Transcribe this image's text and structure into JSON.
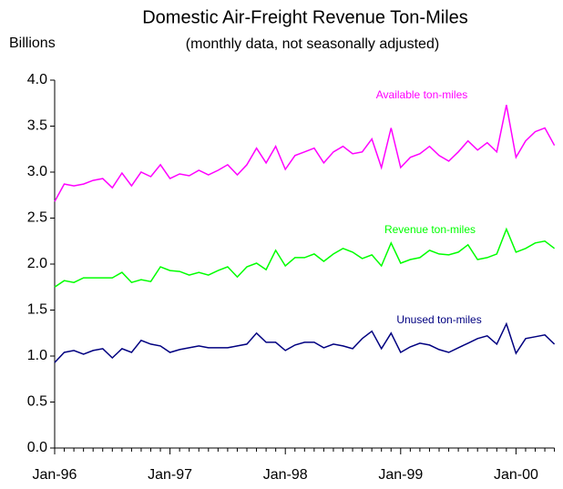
{
  "chart_data": {
    "type": "line",
    "title": "Domestic Air-Freight Revenue Ton-Miles",
    "subtitle": "(monthly data, not seasonally adjusted)",
    "y_label": "Billions",
    "categories": [
      "Jan-96",
      "Feb-96",
      "Mar-96",
      "Apr-96",
      "May-96",
      "Jun-96",
      "Jul-96",
      "Aug-96",
      "Sep-96",
      "Oct-96",
      "Nov-96",
      "Dec-96",
      "Jan-97",
      "Feb-97",
      "Mar-97",
      "Apr-97",
      "May-97",
      "Jun-97",
      "Jul-97",
      "Aug-97",
      "Sep-97",
      "Oct-97",
      "Nov-97",
      "Dec-97",
      "Jan-98",
      "Feb-98",
      "Mar-98",
      "Apr-98",
      "May-98",
      "Jun-98",
      "Jul-98",
      "Aug-98",
      "Sep-98",
      "Oct-98",
      "Nov-98",
      "Dec-98",
      "Jan-99",
      "Feb-99",
      "Mar-99",
      "Apr-99",
      "May-99",
      "Jun-99",
      "Jul-99",
      "Aug-99",
      "Sep-99",
      "Oct-99",
      "Nov-99",
      "Dec-99",
      "Jan-00",
      "Feb-00",
      "Mar-00",
      "Apr-00",
      "May-00"
    ],
    "xtick_every": 12,
    "ylim": [
      0,
      4
    ],
    "yticks": [
      {
        "value": 0,
        "label": "0.0"
      },
      0.5,
      {
        "value": 1,
        "label": "1.0"
      },
      1.5,
      {
        "value": 2,
        "label": "2.0"
      },
      2.5,
      {
        "value": 3,
        "label": "3.0"
      },
      3.5,
      {
        "value": 4,
        "label": "4.0"
      }
    ],
    "grid": false,
    "series": [
      {
        "name": "Available ton-miles",
        "color": "#ff00ff",
        "values": [
          2.68,
          2.87,
          2.85,
          2.87,
          2.91,
          2.93,
          2.83,
          2.99,
          2.85,
          3.0,
          2.95,
          3.08,
          2.93,
          2.98,
          2.96,
          3.02,
          2.97,
          3.02,
          3.08,
          2.97,
          3.08,
          3.26,
          3.1,
          3.28,
          3.03,
          3.18,
          3.22,
          3.26,
          3.1,
          3.22,
          3.28,
          3.2,
          3.22,
          3.36,
          3.05,
          3.48,
          3.05,
          3.16,
          3.2,
          3.28,
          3.18,
          3.12,
          3.22,
          3.34,
          3.24,
          3.32,
          3.22,
          3.73,
          3.16,
          3.34,
          3.44,
          3.48,
          3.29
        ]
      },
      {
        "name": "Revenue ton-miles",
        "color": "#00ff00",
        "values": [
          1.75,
          1.82,
          1.8,
          1.85,
          1.85,
          1.85,
          1.85,
          1.91,
          1.8,
          1.83,
          1.81,
          1.97,
          1.93,
          1.92,
          1.88,
          1.91,
          1.88,
          1.93,
          1.97,
          1.86,
          1.97,
          2.01,
          1.94,
          2.15,
          1.98,
          2.07,
          2.07,
          2.11,
          2.03,
          2.11,
          2.17,
          2.13,
          2.06,
          2.1,
          1.98,
          2.23,
          2.01,
          2.05,
          2.07,
          2.15,
          2.11,
          2.1,
          2.13,
          2.21,
          2.05,
          2.07,
          2.11,
          2.38,
          2.13,
          2.17,
          2.23,
          2.25,
          2.17
        ]
      },
      {
        "name": "Unused ton-miles",
        "color": "#000080",
        "values": [
          0.93,
          1.04,
          1.06,
          1.02,
          1.06,
          1.08,
          0.98,
          1.08,
          1.04,
          1.17,
          1.13,
          1.11,
          1.04,
          1.07,
          1.09,
          1.11,
          1.09,
          1.09,
          1.09,
          1.11,
          1.13,
          1.25,
          1.15,
          1.15,
          1.06,
          1.12,
          1.15,
          1.15,
          1.09,
          1.13,
          1.11,
          1.08,
          1.19,
          1.27,
          1.08,
          1.25,
          1.04,
          1.1,
          1.14,
          1.12,
          1.07,
          1.04,
          1.09,
          1.14,
          1.19,
          1.22,
          1.13,
          1.35,
          1.03,
          1.19,
          1.21,
          1.23,
          1.13
        ]
      }
    ]
  }
}
